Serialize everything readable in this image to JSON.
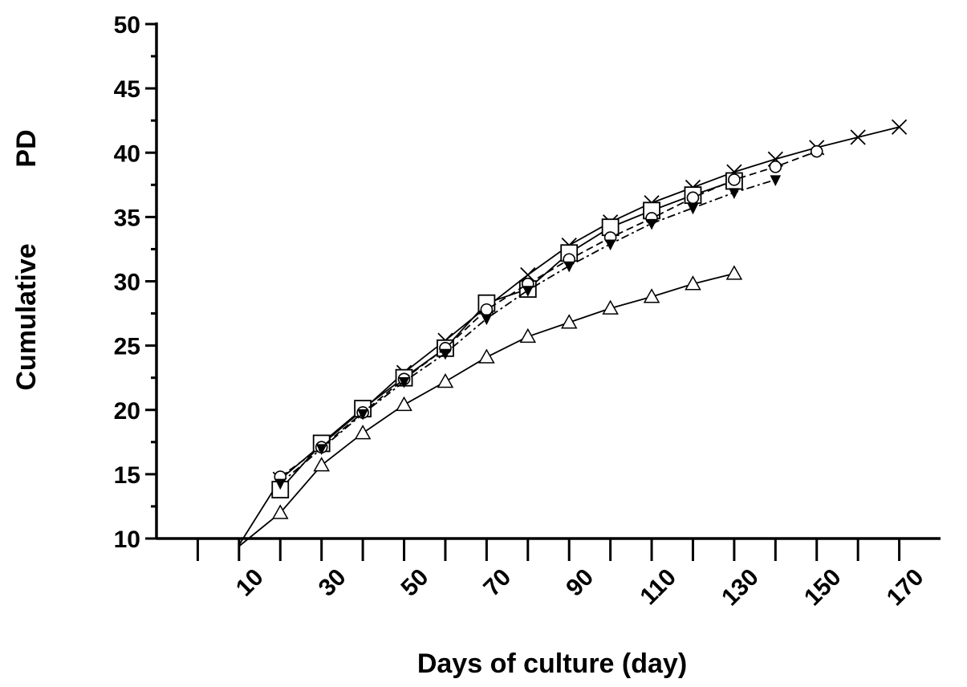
{
  "chart_data": {
    "type": "line",
    "xlabel": "Days of culture (day)",
    "ylabel_parts": [
      "Cumulative",
      "PD"
    ],
    "xlim": [
      -10,
      180
    ],
    "ylim": [
      10,
      50
    ],
    "xticks_labeled": [
      10,
      30,
      50,
      70,
      90,
      110,
      130,
      150,
      170
    ],
    "xticks_minor": [
      0,
      20,
      40,
      60,
      80,
      100,
      120,
      140,
      160
    ],
    "yticks": [
      10,
      15,
      20,
      25,
      30,
      35,
      40,
      45,
      50
    ],
    "grid": false,
    "legend": "none",
    "series": [
      {
        "marker": "x",
        "line_style": "solid",
        "x": [
          10,
          20,
          30,
          40,
          50,
          60,
          70,
          80,
          90,
          100,
          110,
          120,
          130,
          140,
          150,
          160,
          170
        ],
        "y": [
          9.5,
          14.6,
          17.3,
          20.0,
          22.9,
          25.4,
          28.0,
          30.5,
          32.8,
          34.6,
          36.1,
          37.3,
          38.5,
          39.5,
          40.4,
          41.2,
          42.0
        ]
      },
      {
        "marker": "square",
        "line_style": "solid",
        "x": [
          20,
          30,
          40,
          50,
          60,
          70,
          80,
          90,
          100,
          110,
          120,
          130
        ],
        "y": [
          13.8,
          17.4,
          20.1,
          22.5,
          24.8,
          28.3,
          29.4,
          32.2,
          34.2,
          35.5,
          36.7,
          37.8
        ]
      },
      {
        "marker": "circle",
        "line_style": "dashed",
        "x": [
          20,
          30,
          40,
          50,
          60,
          70,
          80,
          90,
          100,
          110,
          120,
          130,
          140,
          150
        ],
        "y": [
          14.8,
          17.1,
          19.8,
          22.4,
          24.8,
          27.8,
          29.8,
          31.7,
          33.4,
          34.9,
          36.5,
          37.9,
          38.9,
          40.1
        ]
      },
      {
        "marker": "filled-triangle-down",
        "line_style": "dash-dot",
        "x": [
          20,
          30,
          40,
          50,
          60,
          70,
          80,
          90,
          100,
          110,
          120,
          130,
          140
        ],
        "y": [
          14.3,
          17.0,
          19.7,
          22.2,
          24.4,
          27.1,
          29.3,
          31.2,
          32.9,
          34.5,
          35.7,
          36.9,
          37.9
        ]
      },
      {
        "marker": "triangle-up",
        "line_style": "solid",
        "x": [
          10,
          20,
          30,
          40,
          50,
          60,
          70,
          80,
          90,
          100,
          110,
          120,
          130
        ],
        "y": [
          9.4,
          12.0,
          15.7,
          18.2,
          20.4,
          22.2,
          24.1,
          25.7,
          26.8,
          27.9,
          28.8,
          29.8,
          30.6
        ]
      }
    ]
  }
}
